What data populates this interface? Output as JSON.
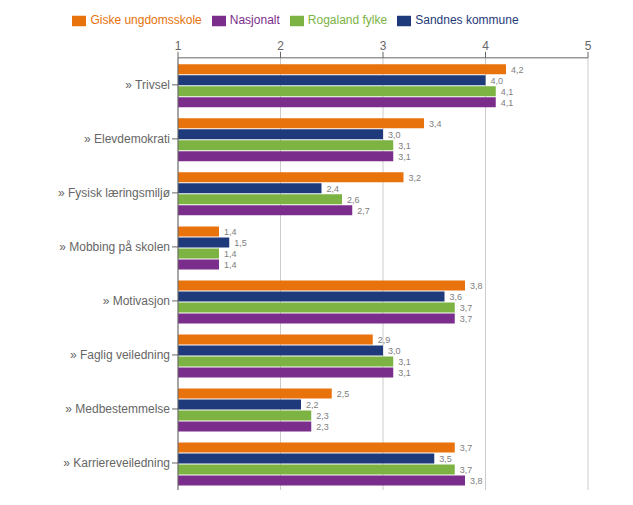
{
  "chart_data": {
    "type": "bar",
    "orientation": "horizontal",
    "categories": [
      "» Trivsel",
      "» Elevdemokrati",
      "» Fysisk læringsmiljø",
      "» Mobbing på skolen",
      "» Motivasjon",
      "» Faglig veiledning",
      "» Medbestemmelse",
      "» Karriereveiledning"
    ],
    "series": [
      {
        "name": "Giske ungdomsskole",
        "color": "#E8720C",
        "values": [
          4.2,
          3.4,
          3.2,
          1.4,
          3.8,
          2.9,
          2.5,
          3.7
        ],
        "value_labels": [
          "4,2",
          "3,4",
          "3,2",
          "1,4",
          "3,8",
          "2,9",
          "2,5",
          "3,7"
        ]
      },
      {
        "name": "Sandnes kommune",
        "color": "#1F3A7A",
        "values": [
          4.0,
          3.0,
          2.4,
          1.5,
          3.6,
          3.0,
          2.2,
          3.5
        ],
        "value_labels": [
          "4,0",
          "3,0",
          "2,4",
          "1,5",
          "3,6",
          "3,0",
          "2,2",
          "3,5"
        ]
      },
      {
        "name": "Rogaland fylke",
        "color": "#7CB342",
        "values": [
          4.1,
          3.1,
          2.6,
          1.4,
          3.7,
          3.1,
          2.3,
          3.7
        ],
        "value_labels": [
          "4,1",
          "3,1",
          "2,6",
          "1,4",
          "3,7",
          "3,1",
          "2,3",
          "3,7"
        ]
      },
      {
        "name": "Nasjonalt",
        "color": "#7B2D8B",
        "values": [
          4.1,
          3.1,
          2.7,
          1.4,
          3.7,
          3.1,
          2.3,
          3.8
        ],
        "value_labels": [
          "4,1",
          "3,1",
          "2,7",
          "1,4",
          "3,7",
          "3,1",
          "2,3",
          "3,8"
        ]
      }
    ],
    "xlim": [
      1,
      5
    ],
    "xticks": [
      1,
      2,
      3,
      4,
      5
    ],
    "grid": true,
    "legend": "top",
    "data_labels": true
  }
}
